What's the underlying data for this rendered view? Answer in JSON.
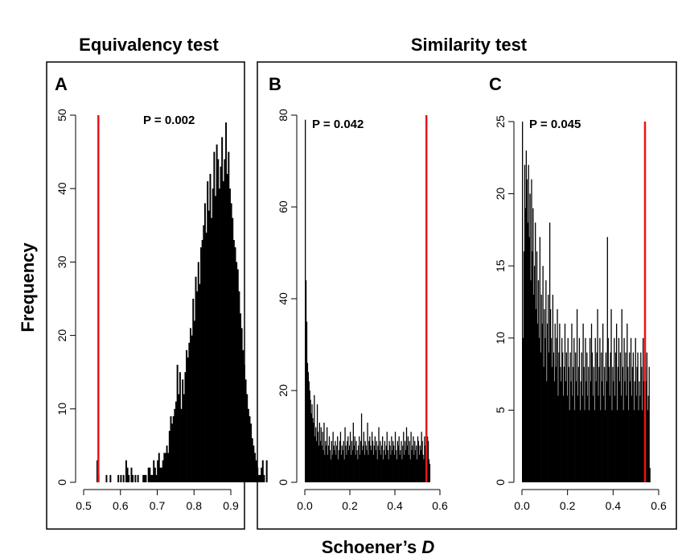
{
  "figure": {
    "title_left": "Equivalency test",
    "title_right": "Similarity test",
    "ylabel": "Frequency",
    "xlabel_main": "Schoener’s ",
    "xlabel_italic": "D"
  },
  "chart_data": [
    {
      "type": "bar",
      "panel": "A",
      "annotation": "P = 0.002",
      "xlim": [
        0.5,
        0.9
      ],
      "ylim": [
        0,
        50
      ],
      "xticks": [
        "0.5",
        "0.6",
        "0.7",
        "0.8",
        "0.9"
      ],
      "yticks": [
        "0",
        "10",
        "20",
        "30",
        "40",
        "50"
      ],
      "observed_line_x": 0.54,
      "line_color": "#e8141a",
      "bar_color": "#000000",
      "bin_start": 0.535,
      "bin_width": 0.00357,
      "values": [
        3,
        1,
        0,
        0,
        0,
        0,
        0,
        1,
        0,
        0,
        1,
        0,
        0,
        0,
        0,
        0,
        1,
        0,
        1,
        0,
        1,
        0,
        3,
        2,
        1,
        0,
        2,
        1,
        0,
        1,
        0,
        1,
        0,
        0,
        0,
        1,
        1,
        1,
        0,
        2,
        2,
        1,
        1,
        3,
        2,
        1,
        3,
        4,
        2,
        2,
        3,
        4,
        4,
        5,
        4,
        7,
        9,
        8,
        9,
        10,
        11,
        16,
        12,
        15,
        10,
        14,
        12,
        15,
        18,
        17,
        19,
        21,
        20,
        25,
        22,
        28,
        26,
        30,
        27,
        32,
        33,
        35,
        38,
        34,
        41,
        37,
        42,
        36,
        40,
        45,
        39,
        46,
        44,
        40,
        43,
        47,
        41,
        44,
        49,
        42,
        45,
        40,
        38,
        36,
        33,
        32,
        30,
        29,
        26,
        23,
        21,
        18,
        16,
        14,
        12,
        10,
        9,
        8,
        6,
        5,
        4,
        3,
        2,
        1,
        1,
        2,
        3,
        1,
        0,
        3
      ]
    },
    {
      "type": "bar",
      "panel": "B",
      "annotation": "P = 0.042",
      "xlim": [
        0,
        0.6
      ],
      "ylim": [
        0,
        80
      ],
      "xticks": [
        "0.0",
        "0.2",
        "0.4",
        "0.6"
      ],
      "yticks": [
        "0",
        "20",
        "40",
        "60",
        "80"
      ],
      "observed_line_x": 0.54,
      "line_color": "#e8141a",
      "bar_color": "#000000",
      "bin_start": 0.0,
      "bin_width": 0.00333,
      "values": [
        79,
        44,
        35,
        26,
        24,
        22,
        20,
        18,
        15,
        17,
        14,
        13,
        19,
        10,
        12,
        9,
        17,
        11,
        8,
        13,
        9,
        12,
        8,
        11,
        7,
        13,
        6,
        9,
        8,
        12,
        6,
        8,
        10,
        7,
        5,
        9,
        6,
        11,
        8,
        7,
        9,
        6,
        8,
        10,
        5,
        7,
        9,
        11,
        6,
        8,
        7,
        9,
        5,
        12,
        8,
        6,
        9,
        10,
        7,
        8,
        11,
        6,
        9,
        7,
        13,
        8,
        10,
        6,
        9,
        7,
        5,
        8,
        10,
        6,
        9,
        15,
        7,
        8,
        11,
        6,
        9,
        8,
        7,
        13,
        6,
        9,
        10,
        8,
        7,
        11,
        9,
        6,
        8,
        10,
        7,
        9,
        5,
        8,
        12,
        7,
        9,
        6,
        8,
        10,
        5,
        7,
        9,
        6,
        8,
        11,
        7,
        5,
        9,
        8,
        6,
        10,
        7,
        9,
        8,
        6,
        11,
        7,
        5,
        9,
        8,
        10,
        6,
        7,
        9,
        5,
        8,
        11,
        6,
        9,
        7,
        12,
        8,
        10,
        6,
        9,
        5,
        11,
        7,
        8,
        10,
        6,
        9,
        7,
        8,
        5,
        10,
        9,
        6,
        8,
        7,
        11,
        9,
        6,
        5,
        10,
        8,
        7,
        6,
        10,
        9,
        5,
        4
      ]
    },
    {
      "type": "bar",
      "panel": "C",
      "annotation": "P = 0.045",
      "xlim": [
        0,
        0.6
      ],
      "ylim": [
        0,
        25
      ],
      "xticks": [
        "0.0",
        "0.2",
        "0.4",
        "0.6"
      ],
      "yticks": [
        "0",
        "5",
        "10",
        "15",
        "20",
        "25"
      ],
      "observed_line_x": 0.54,
      "line_color": "#e8141a",
      "bar_color": "#000000",
      "bin_start": 0.0,
      "bin_width": 0.00333,
      "values": [
        25,
        10,
        16,
        22,
        19,
        23,
        21,
        18,
        22,
        17,
        20,
        14,
        21,
        16,
        19,
        13,
        15,
        18,
        12,
        16,
        11,
        14,
        10,
        17,
        9,
        13,
        11,
        15,
        8,
        12,
        10,
        14,
        7,
        11,
        13,
        9,
        18,
        12,
        10,
        8,
        13,
        9,
        7,
        11,
        8,
        10,
        12,
        6,
        9,
        11,
        8,
        7,
        10,
        9,
        6,
        8,
        11,
        7,
        9,
        6,
        10,
        8,
        5,
        9,
        7,
        11,
        6,
        8,
        10,
        5,
        9,
        7,
        12,
        6,
        8,
        10,
        5,
        7,
        9,
        6,
        11,
        8,
        5,
        10,
        7,
        9,
        6,
        8,
        5,
        10,
        7,
        11,
        9,
        6,
        8,
        5,
        10,
        7,
        9,
        12,
        6,
        8,
        10,
        5,
        9,
        7,
        11,
        6,
        8,
        5,
        9,
        7,
        17,
        10,
        8,
        6,
        9,
        12,
        5,
        8,
        7,
        10,
        6,
        9,
        11,
        5,
        8,
        10,
        7,
        9,
        6,
        12,
        8,
        5,
        10,
        7,
        9,
        6,
        11,
        8,
        5,
        9,
        7,
        10,
        6,
        8,
        9,
        5,
        7,
        10,
        6,
        8,
        9,
        5,
        7,
        6,
        9,
        8,
        5,
        10,
        7,
        6,
        8,
        7,
        9,
        5,
        6,
        8,
        1
      ]
    }
  ]
}
